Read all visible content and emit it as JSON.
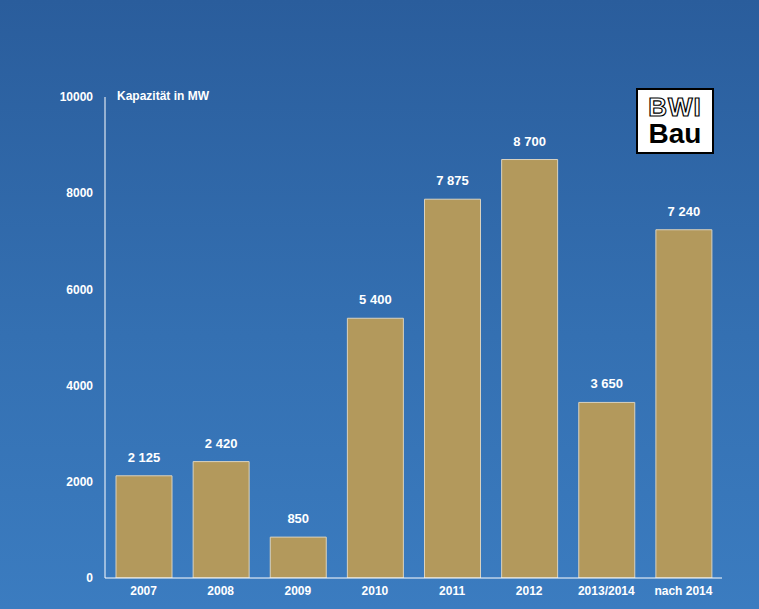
{
  "chart_data": {
    "type": "bar",
    "y_label": "Kapazität in MW",
    "annotations": [
      "BWI",
      "Bau"
    ],
    "categories": [
      "2007",
      "2008",
      "2009",
      "2010",
      "2011",
      "2012",
      "2013/2014",
      "nach 2014"
    ],
    "values": [
      2125,
      2420,
      850,
      5400,
      7875,
      8700,
      3650,
      7240
    ],
    "value_labels": [
      "2 125",
      "2 420",
      "850",
      "5 400",
      "7 875",
      "8 700",
      "3 650",
      "7 240"
    ],
    "color": "#b3995c",
    "ylim": [
      0,
      10000
    ],
    "yticks": [
      0,
      2000,
      4000,
      6000,
      8000,
      10000
    ],
    "grid": false,
    "data_labels": true
  }
}
